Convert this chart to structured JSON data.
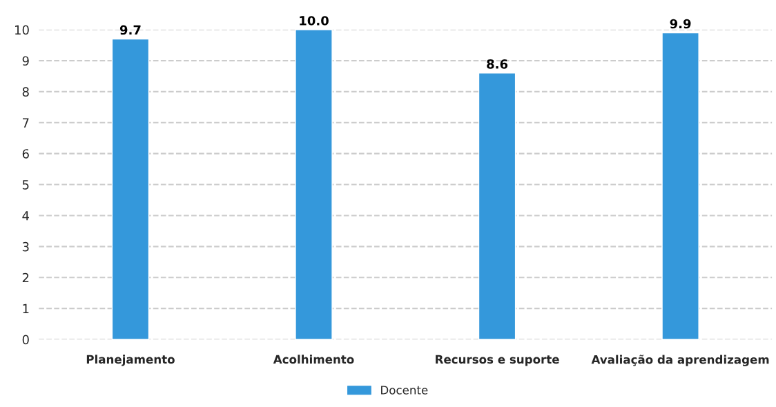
{
  "chart_data": {
    "type": "bar",
    "categories": [
      "Planejamento",
      "Acolhimento",
      "Recursos e suporte",
      "Avaliação da aprendizagem"
    ],
    "series": [
      {
        "name": "Docente",
        "color": "#3498db",
        "values": [
          9.7,
          10.0,
          8.6,
          9.9
        ],
        "value_labels": [
          "9.7",
          "10.0",
          "8.6",
          "9.9"
        ]
      }
    ],
    "ylim": [
      0,
      10
    ],
    "yticks": [
      0,
      1,
      2,
      3,
      4,
      5,
      6,
      7,
      8,
      9,
      10
    ],
    "grid": "y",
    "legend": "bottom"
  }
}
